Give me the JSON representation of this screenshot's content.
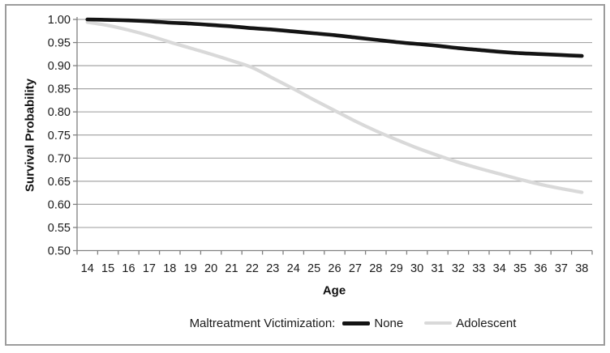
{
  "colors": {
    "background": "#ffffff",
    "frame_border": "#9c9c9c",
    "gridline": "#a6a6a6",
    "axis": "#808080",
    "tick_text": "#1a1a1a",
    "series_none": "#141414",
    "series_adolescent": "#d9d9d9"
  },
  "chart_data": {
    "type": "line",
    "title": "",
    "xlabel": "Age",
    "ylabel": "Survival Probability",
    "legend_title": "Maltreatment Victimization:",
    "legend_position": "bottom",
    "grid": true,
    "x": [
      14,
      15,
      16,
      17,
      18,
      19,
      20,
      21,
      22,
      23,
      24,
      25,
      26,
      27,
      28,
      29,
      30,
      31,
      32,
      33,
      34,
      35,
      36,
      37,
      38
    ],
    "ylim": [
      0.5,
      1.0
    ],
    "yticks": [
      "1.00",
      "0.95",
      "0.90",
      "0.85",
      "0.80",
      "0.75",
      "0.70",
      "0.65",
      "0.60",
      "0.55",
      "0.50"
    ],
    "series": [
      {
        "name": "None",
        "color": "#141414",
        "stroke_width": 4.6,
        "values": [
          1.0,
          0.999,
          0.998,
          0.996,
          0.993,
          0.991,
          0.988,
          0.985,
          0.981,
          0.978,
          0.974,
          0.97,
          0.966,
          0.961,
          0.956,
          0.951,
          0.947,
          0.943,
          0.938,
          0.934,
          0.93,
          0.927,
          0.925,
          0.923,
          0.921
        ]
      },
      {
        "name": "Adolescent",
        "color": "#d9d9d9",
        "stroke_width": 4.2,
        "values": [
          0.994,
          0.987,
          0.977,
          0.965,
          0.951,
          0.938,
          0.925,
          0.911,
          0.896,
          0.873,
          0.85,
          0.826,
          0.803,
          0.78,
          0.759,
          0.74,
          0.722,
          0.706,
          0.691,
          0.678,
          0.666,
          0.654,
          0.643,
          0.634,
          0.626
        ]
      }
    ]
  }
}
